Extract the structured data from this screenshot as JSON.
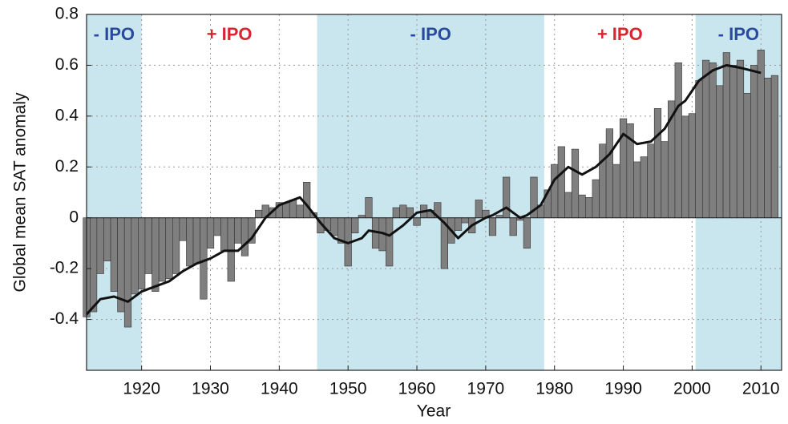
{
  "chart_data": {
    "type": "bar",
    "xlabel": "Year",
    "ylabel": "Global mean SAT anomaly",
    "x": [
      1912,
      1913,
      1914,
      1915,
      1916,
      1917,
      1918,
      1919,
      1920,
      1921,
      1922,
      1923,
      1924,
      1925,
      1926,
      1927,
      1928,
      1929,
      1930,
      1931,
      1932,
      1933,
      1934,
      1935,
      1936,
      1937,
      1938,
      1939,
      1940,
      1941,
      1942,
      1943,
      1944,
      1945,
      1946,
      1947,
      1948,
      1949,
      1950,
      1951,
      1952,
      1953,
      1954,
      1955,
      1956,
      1957,
      1958,
      1959,
      1960,
      1961,
      1962,
      1963,
      1964,
      1965,
      1966,
      1967,
      1968,
      1969,
      1970,
      1971,
      1972,
      1973,
      1974,
      1975,
      1976,
      1977,
      1978,
      1979,
      1980,
      1981,
      1982,
      1983,
      1984,
      1985,
      1986,
      1987,
      1988,
      1989,
      1990,
      1991,
      1992,
      1993,
      1994,
      1995,
      1996,
      1997,
      1998,
      1999,
      2000,
      2001,
      2002,
      2003,
      2004,
      2005,
      2006,
      2007,
      2008,
      2009,
      2010,
      2011,
      2012
    ],
    "values": [
      -0.39,
      -0.37,
      -0.22,
      -0.17,
      -0.29,
      -0.37,
      -0.43,
      -0.3,
      -0.28,
      -0.22,
      -0.29,
      -0.25,
      -0.24,
      -0.22,
      -0.09,
      -0.19,
      -0.18,
      -0.32,
      -0.12,
      -0.07,
      -0.13,
      -0.25,
      -0.1,
      -0.15,
      -0.1,
      0.03,
      0.05,
      0.04,
      0.06,
      0.06,
      0.07,
      0.05,
      0.14,
      0.02,
      -0.06,
      -0.05,
      -0.07,
      -0.1,
      -0.19,
      -0.06,
      0.01,
      0.08,
      -0.12,
      -0.13,
      -0.19,
      0.04,
      0.05,
      0.04,
      -0.03,
      0.05,
      0.03,
      0.06,
      -0.2,
      -0.1,
      -0.05,
      -0.02,
      -0.06,
      0.07,
      0.03,
      -0.07,
      0.01,
      0.16,
      -0.07,
      -0.01,
      -0.12,
      0.16,
      0.05,
      0.11,
      0.21,
      0.28,
      0.1,
      0.27,
      0.09,
      0.08,
      0.15,
      0.29,
      0.35,
      0.21,
      0.39,
      0.37,
      0.22,
      0.24,
      0.29,
      0.43,
      0.3,
      0.46,
      0.61,
      0.4,
      0.41,
      0.54,
      0.62,
      0.61,
      0.52,
      0.65,
      0.6,
      0.62,
      0.49,
      0.6,
      0.66,
      0.55,
      0.56
    ],
    "color": "#7f7f7f",
    "line": {
      "color": "#111111",
      "x": [
        1912,
        1914,
        1916,
        1918,
        1920,
        1922,
        1924,
        1926,
        1928,
        1930,
        1932,
        1934,
        1936,
        1938,
        1940,
        1941,
        1943,
        1944,
        1946,
        1948,
        1950,
        1952,
        1953,
        1955,
        1956,
        1958,
        1960,
        1962,
        1964,
        1966,
        1968,
        1970,
        1971,
        1973,
        1975,
        1976,
        1978,
        1980,
        1982,
        1984,
        1986,
        1988,
        1990,
        1992,
        1994,
        1996,
        1998,
        1999,
        2001,
        2003,
        2005,
        2007,
        2010
      ],
      "values": [
        -0.38,
        -0.32,
        -0.31,
        -0.33,
        -0.29,
        -0.27,
        -0.25,
        -0.21,
        -0.18,
        -0.16,
        -0.13,
        -0.13,
        -0.08,
        0.0,
        0.05,
        0.06,
        0.08,
        0.05,
        -0.02,
        -0.08,
        -0.1,
        -0.08,
        -0.05,
        -0.06,
        -0.07,
        -0.03,
        0.02,
        0.03,
        -0.02,
        -0.08,
        -0.03,
        0.0,
        0.01,
        0.04,
        0.0,
        0.01,
        0.05,
        0.15,
        0.2,
        0.17,
        0.2,
        0.25,
        0.33,
        0.29,
        0.3,
        0.35,
        0.44,
        0.46,
        0.54,
        0.58,
        0.6,
        0.59,
        0.57
      ]
    },
    "phases": [
      {
        "label": "- IPO",
        "start": 1912,
        "end": 1920,
        "shaded": true,
        "color": "#2a4a9c"
      },
      {
        "label": "+ IPO",
        "start": 1920,
        "end": 1945.5,
        "shaded": false,
        "color": "#d9262e"
      },
      {
        "label": "- IPO",
        "start": 1945.5,
        "end": 1978.5,
        "shaded": true,
        "color": "#2a4a9c"
      },
      {
        "label": "+ IPO",
        "start": 1978.5,
        "end": 2000.5,
        "shaded": false,
        "color": "#d9262e"
      },
      {
        "label": "- IPO",
        "start": 2000.5,
        "end": 2013,
        "shaded": true,
        "color": "#2a4a9c"
      }
    ],
    "shade_color": "#c9e6ef",
    "xlim": [
      1912,
      2013
    ],
    "ylim": [
      -0.6,
      0.8
    ],
    "xticks": [
      1920,
      1930,
      1940,
      1950,
      1960,
      1970,
      1980,
      1990,
      2000,
      2010
    ],
    "yticks": [
      -0.4,
      -0.2,
      0,
      0.2,
      0.4,
      0.6,
      0.8
    ],
    "grid": true
  }
}
